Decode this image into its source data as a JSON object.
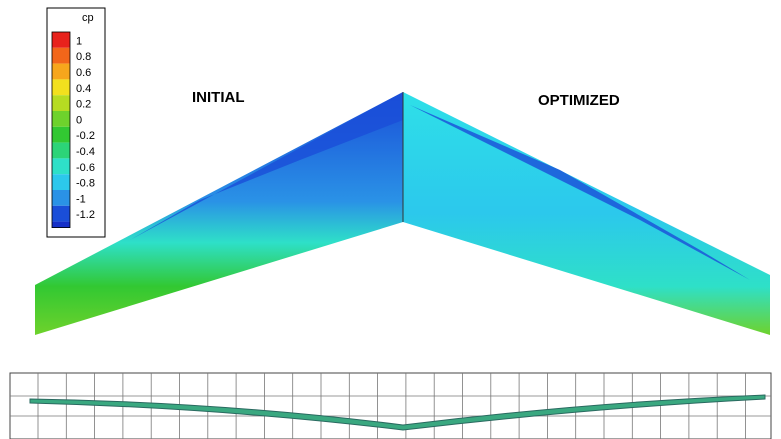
{
  "legend": {
    "title": "cp",
    "levels": [
      {
        "label": "1",
        "color": "#e8221c"
      },
      {
        "label": "0.8",
        "color": "#f2661a"
      },
      {
        "label": "0.6",
        "color": "#f7a61c"
      },
      {
        "label": "0.4",
        "color": "#f2e01e"
      },
      {
        "label": "0.2",
        "color": "#b6dc22"
      },
      {
        "label": "0",
        "color": "#6ed22c"
      },
      {
        "label": "-0.2",
        "color": "#32c832"
      },
      {
        "label": "-0.4",
        "color": "#2cd478"
      },
      {
        "label": "-0.6",
        "color": "#2ee0c8"
      },
      {
        "label": "-0.8",
        "color": "#2cc8ec"
      },
      {
        "label": "-1",
        "color": "#2a92e6"
      },
      {
        "label": "-1.2",
        "color": "#1a4ed8"
      }
    ],
    "bottom_color": "#1630c8"
  },
  "labels": {
    "initial": "INITIAL",
    "optimized": "OPTIMIZED"
  }
}
